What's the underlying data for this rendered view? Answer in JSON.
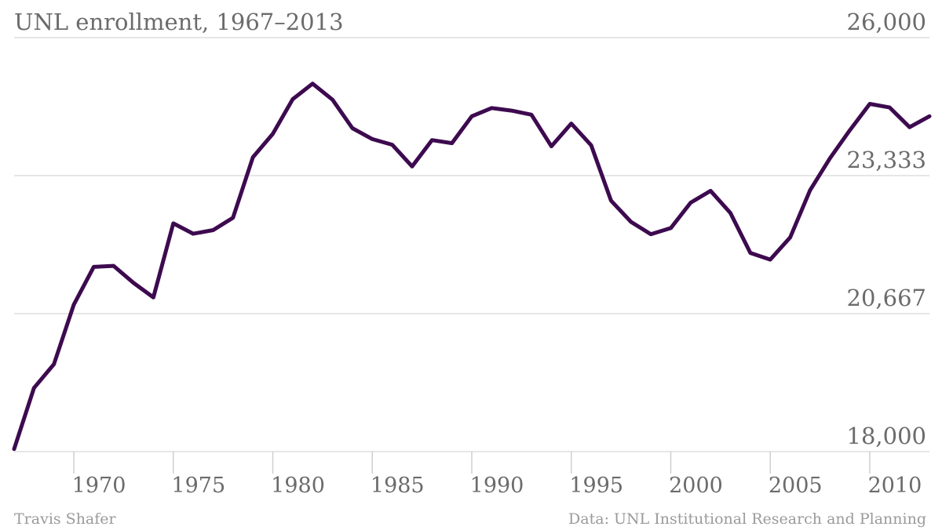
{
  "chart_data": {
    "type": "line",
    "title": "UNL enrollment, 1967–2013",
    "xlabel": "",
    "ylabel": "",
    "xlim": [
      1967,
      2013
    ],
    "ylim": [
      18000,
      26000
    ],
    "x_ticks": [
      1970,
      1975,
      1980,
      1985,
      1990,
      1995,
      2000,
      2005,
      2010
    ],
    "x_tick_labels": [
      "1970",
      "1975",
      "1980",
      "1985",
      "1990",
      "1995",
      "2000",
      "2005",
      "2010"
    ],
    "y_ticks": [
      18000,
      20667,
      23333,
      26000
    ],
    "y_tick_labels": [
      "18,000",
      "20,667",
      "23,333",
      "26,000"
    ],
    "grid": true,
    "color": "#3d0a4f",
    "series": [
      {
        "x": [
          1967,
          1968,
          1969,
          1970,
          1971,
          1972,
          1973,
          1974,
          1975,
          1976,
          1977,
          1978,
          1979,
          1980,
          1981,
          1982,
          1983,
          1984,
          1985,
          1986,
          1987,
          1988,
          1989,
          1990,
          1991,
          1992,
          1993,
          1994,
          1995,
          1996,
          1997,
          1998,
          1999,
          2000,
          2001,
          2002,
          2003,
          2004,
          2005,
          2006,
          2007,
          2008,
          2009,
          2010,
          2011,
          2012,
          2013
        ],
        "values": [
          18050,
          19230,
          19690,
          20840,
          21570,
          21590,
          21260,
          20980,
          22410,
          22210,
          22280,
          22520,
          23690,
          24140,
          24810,
          25110,
          24800,
          24250,
          24040,
          23930,
          23510,
          24020,
          23960,
          24480,
          24640,
          24590,
          24510,
          23900,
          24340,
          23920,
          22850,
          22440,
          22200,
          22320,
          22810,
          23040,
          22610,
          21840,
          21710,
          22140,
          23050,
          23670,
          24210,
          24720,
          24650,
          24270,
          24480
        ]
      }
    ],
    "footer": {
      "credit": "Travis Shafer",
      "source": "Data: UNL Institutional Research and Planning"
    }
  }
}
